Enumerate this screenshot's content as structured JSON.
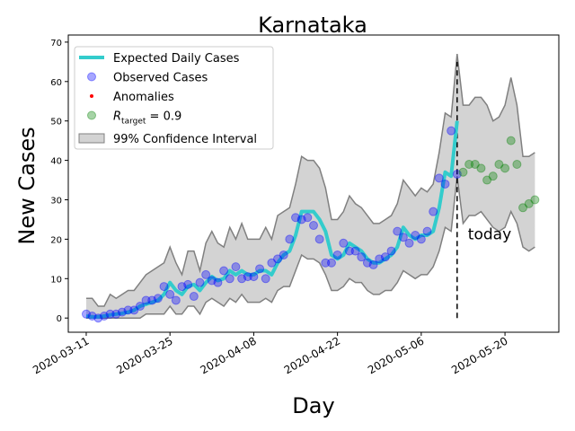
{
  "chart_data": {
    "type": "line",
    "title": "Karnataka",
    "xlabel": "Day",
    "ylabel": "New Cases",
    "x": [
      "2020-03-11",
      "2020-03-12",
      "2020-03-13",
      "2020-03-14",
      "2020-03-15",
      "2020-03-16",
      "2020-03-17",
      "2020-03-18",
      "2020-03-19",
      "2020-03-20",
      "2020-03-21",
      "2020-03-22",
      "2020-03-23",
      "2020-03-24",
      "2020-03-25",
      "2020-03-26",
      "2020-03-27",
      "2020-03-28",
      "2020-03-29",
      "2020-03-30",
      "2020-03-31",
      "2020-04-01",
      "2020-04-02",
      "2020-04-03",
      "2020-04-04",
      "2020-04-05",
      "2020-04-06",
      "2020-04-07",
      "2020-04-08",
      "2020-04-09",
      "2020-04-10",
      "2020-04-11",
      "2020-04-12",
      "2020-04-13",
      "2020-04-14",
      "2020-04-15",
      "2020-04-16",
      "2020-04-17",
      "2020-04-18",
      "2020-04-19",
      "2020-04-20",
      "2020-04-21",
      "2020-04-22",
      "2020-04-23",
      "2020-04-24",
      "2020-04-25",
      "2020-04-26",
      "2020-04-27",
      "2020-04-28",
      "2020-04-29",
      "2020-04-30",
      "2020-05-01",
      "2020-05-02",
      "2020-05-03",
      "2020-05-04",
      "2020-05-05",
      "2020-05-06",
      "2020-05-07",
      "2020-05-08",
      "2020-05-09",
      "2020-05-10",
      "2020-05-11",
      "2020-05-12",
      "2020-05-13",
      "2020-05-14",
      "2020-05-15",
      "2020-05-16",
      "2020-05-17",
      "2020-05-18",
      "2020-05-19",
      "2020-05-20",
      "2020-05-21",
      "2020-05-22",
      "2020-05-23",
      "2020-05-24",
      "2020-05-25"
    ],
    "band": {
      "name": "99% Confidence Interval",
      "color": "#d3d3d3",
      "edge_color": "#808080",
      "upper": [
        5,
        5,
        3,
        3,
        6,
        5,
        6,
        7,
        7,
        9,
        11,
        12,
        13,
        14,
        18,
        14,
        11,
        17,
        17,
        12,
        19,
        22,
        19,
        18,
        23,
        20,
        24,
        20,
        20,
        20,
        23,
        20,
        26,
        27,
        28,
        34,
        41,
        40,
        40,
        38,
        33,
        25,
        25,
        27,
        31,
        29,
        28,
        26,
        24,
        24,
        25,
        26,
        29,
        35,
        33,
        31,
        33,
        32,
        34,
        42,
        52,
        51,
        67,
        54,
        54,
        56,
        56,
        54,
        50,
        51,
        54,
        61,
        54,
        41,
        41,
        42
      ],
      "lower": [
        0,
        0,
        0,
        0,
        0,
        0,
        0,
        0,
        0,
        0,
        1,
        1,
        1,
        1,
        3,
        1,
        1,
        3,
        3,
        1,
        4,
        5,
        4,
        3,
        5,
        4,
        6,
        4,
        4,
        4,
        5,
        4,
        7,
        8,
        8,
        12,
        16,
        15,
        15,
        14,
        11,
        7,
        7,
        8,
        10,
        9,
        9,
        7,
        6,
        6,
        7,
        7,
        9,
        12,
        11,
        10,
        11,
        11,
        13,
        17,
        23,
        22,
        36,
        24,
        26,
        26,
        27,
        25,
        23,
        22,
        23,
        27,
        24,
        18,
        17,
        18
      ]
    },
    "series": [
      {
        "name": "Expected Daily Cases",
        "style": "line",
        "color": "#33cccc",
        "values": [
          0.5,
          0.3,
          0.3,
          0.5,
          0.8,
          1,
          1.2,
          1.5,
          2,
          3,
          3.5,
          4,
          4.5,
          6,
          9,
          7,
          6,
          8,
          8.5,
          7,
          9,
          10.5,
          9.5,
          10,
          12,
          11,
          12,
          11,
          11,
          12,
          12,
          11,
          14,
          16,
          17,
          21,
          27,
          27,
          27,
          25,
          22,
          16,
          15,
          16,
          19,
          18,
          17,
          15,
          14,
          14,
          15,
          16,
          18,
          23,
          21,
          20,
          21,
          21,
          22,
          28,
          37,
          36,
          50,
          null,
          null,
          null,
          null,
          null,
          null,
          null,
          null,
          null,
          null,
          null,
          null,
          null
        ]
      },
      {
        "name": "Observed Cases",
        "style": "circle",
        "color": "#0000ff",
        "values": [
          1,
          0.5,
          0,
          0.5,
          1,
          1,
          1.5,
          2,
          2,
          3,
          4.5,
          4.5,
          5,
          8,
          6,
          4.5,
          8,
          8.5,
          5.5,
          9,
          11,
          9.5,
          9,
          12,
          10,
          13,
          10,
          10.5,
          10.5,
          12.5,
          10,
          14,
          15,
          16,
          20,
          25.5,
          25,
          25.5,
          23.5,
          20,
          14,
          14,
          16,
          19,
          17,
          17,
          15.5,
          14,
          13.5,
          15,
          15.5,
          17,
          22,
          20.5,
          19,
          21,
          20,
          22,
          27,
          35.5,
          34,
          47.5,
          36.5,
          null,
          null,
          null,
          null,
          null,
          null,
          null,
          null,
          null,
          null,
          null,
          null,
          null
        ]
      },
      {
        "name": "Anomalies",
        "style": "dot",
        "color": "#ff0000",
        "values": [
          null,
          null,
          null,
          null,
          null,
          null,
          null,
          null,
          null,
          null,
          null,
          null,
          null,
          null,
          null,
          null,
          null,
          null,
          null,
          null,
          null,
          null,
          null,
          null,
          null,
          null,
          null,
          null,
          null,
          null,
          null,
          null,
          null,
          null,
          null,
          null,
          null,
          null,
          null,
          null,
          null,
          null,
          null,
          null,
          null,
          null,
          null,
          null,
          null,
          null,
          null,
          null,
          null,
          null,
          null,
          null,
          null,
          null,
          null,
          null,
          null,
          null,
          null,
          null,
          null,
          null,
          null,
          null,
          null,
          null,
          null,
          null,
          null,
          null,
          null,
          null
        ]
      },
      {
        "name": {
          "main": "R",
          "sub": "target",
          "rest": " = 0.9"
        },
        "style": "circle",
        "color": "#008000",
        "values": [
          null,
          null,
          null,
          null,
          null,
          null,
          null,
          null,
          null,
          null,
          null,
          null,
          null,
          null,
          null,
          null,
          null,
          null,
          null,
          null,
          null,
          null,
          null,
          null,
          null,
          null,
          null,
          null,
          null,
          null,
          null,
          null,
          null,
          null,
          null,
          null,
          null,
          null,
          null,
          null,
          null,
          null,
          null,
          null,
          null,
          null,
          null,
          null,
          null,
          null,
          null,
          null,
          null,
          null,
          null,
          null,
          null,
          null,
          null,
          null,
          null,
          null,
          null,
          37,
          39,
          39,
          38,
          35,
          36,
          39,
          38,
          45,
          39,
          28,
          29,
          30
        ]
      }
    ],
    "today": {
      "text": "today",
      "x": "2020-05-12",
      "y": [
        0,
        65
      ]
    },
    "xlim": [
      "2020-03-08",
      "2020-05-29"
    ],
    "xticks": [
      "2020-03-11",
      "2020-03-25",
      "2020-04-08",
      "2020-04-22",
      "2020-05-06",
      "2020-05-20"
    ],
    "ylim": [
      -3.6,
      71.8
    ],
    "yticks": [
      0,
      10,
      20,
      30,
      40,
      50,
      60,
      70
    ],
    "legend": "upper left"
  }
}
